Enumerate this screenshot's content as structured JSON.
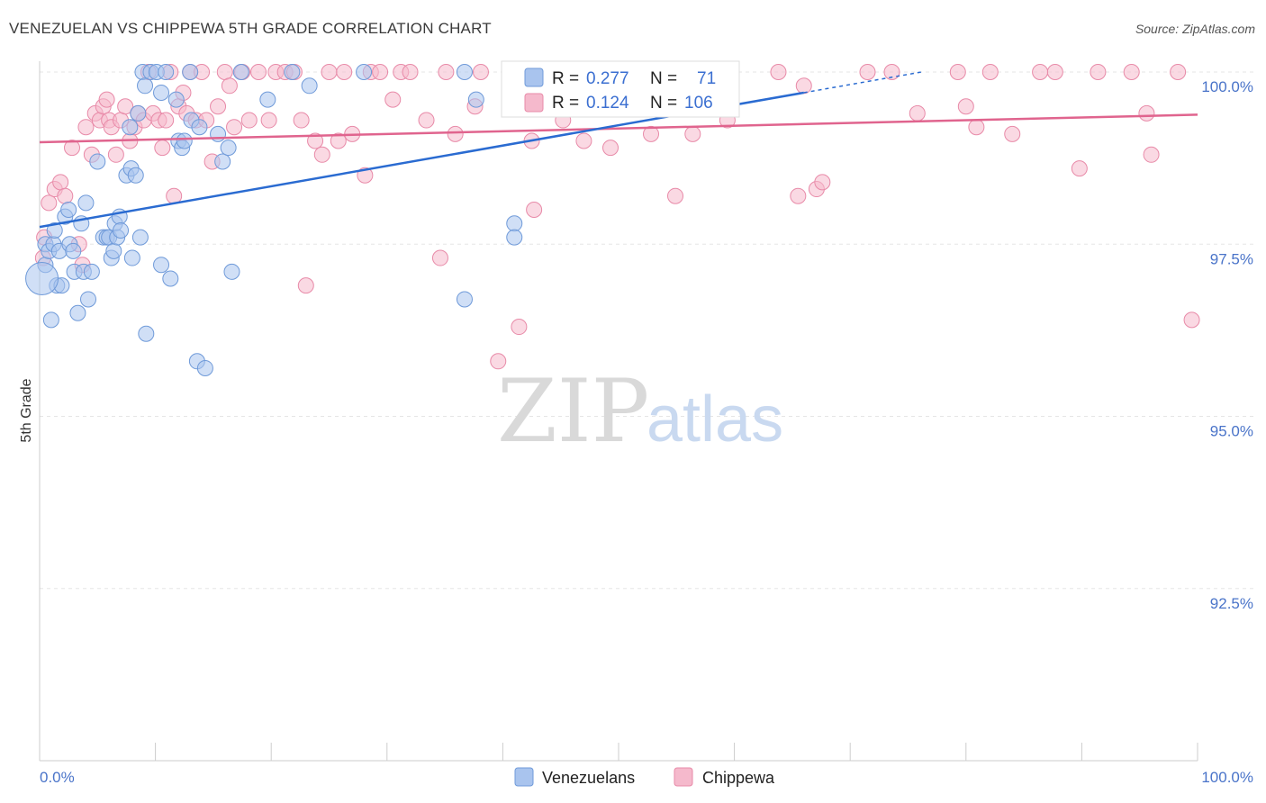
{
  "header": {
    "title": "VENEZUELAN VS CHIPPEWA 5TH GRADE CORRELATION CHART",
    "source": "Source: ZipAtlas.com"
  },
  "watermark": {
    "zip": "ZIP",
    "atlas": "atlas"
  },
  "legend_box": {
    "r_label": "R =",
    "n_label": "N =",
    "rows": [
      {
        "r": "0.277",
        "n": "71"
      },
      {
        "r": "0.124",
        "n": "106"
      }
    ]
  },
  "bottom_legend": [
    "Venezuelans",
    "Chippewa"
  ],
  "colors": {
    "venezuelans_fill": "#a9c4ee",
    "venezuelans_stroke": "#6f9ad9",
    "venezuelans_line": "#2a6bd1",
    "chippewa_fill": "#f5b9cc",
    "chippewa_stroke": "#e88aa8",
    "chippewa_line": "#e0648e",
    "tick_text": "#4a74c9"
  },
  "chart_data": {
    "type": "scatter",
    "title": "VENEZUELAN VS CHIPPEWA 5TH GRADE CORRELATION CHART",
    "xlabel": "",
    "ylabel": "5th Grade",
    "xlim": [
      0,
      100
    ],
    "ylim": [
      90.0,
      100.0
    ],
    "x_tick_labels": [
      "0.0%",
      "100.0%"
    ],
    "y_ticks": [
      92.5,
      95.0,
      97.5,
      100.0
    ],
    "y_tick_labels": [
      "92.5%",
      "95.0%",
      "97.5%",
      "100.0%"
    ],
    "grid": true,
    "legend_position": "top-center",
    "series": [
      {
        "name": "Venezuelans",
        "r": 0.277,
        "n": 71,
        "trend": {
          "x": [
            0,
            66
          ],
          "y": [
            97.75,
            99.7
          ]
        },
        "trend_dashed": {
          "x": [
            66,
            66
          ],
          "y": [
            99.7,
            99.7
          ]
        },
        "points": [
          [
            0.5,
            97.5
          ],
          [
            0.5,
            97.2
          ],
          [
            0.8,
            97.4
          ],
          [
            1.0,
            96.4
          ],
          [
            1.2,
            97.5
          ],
          [
            1.3,
            97.7
          ],
          [
            1.5,
            96.9
          ],
          [
            1.7,
            97.4
          ],
          [
            1.9,
            96.9
          ],
          [
            2.2,
            97.9
          ],
          [
            2.5,
            98.0
          ],
          [
            2.6,
            97.5
          ],
          [
            2.9,
            97.4
          ],
          [
            3.0,
            97.1
          ],
          [
            3.3,
            96.5
          ],
          [
            3.6,
            97.8
          ],
          [
            3.8,
            97.1
          ],
          [
            4.0,
            98.1
          ],
          [
            4.2,
            96.7
          ],
          [
            4.5,
            97.1
          ],
          [
            5.0,
            98.7
          ],
          [
            5.5,
            97.6
          ],
          [
            5.8,
            97.6
          ],
          [
            6.0,
            97.6
          ],
          [
            6.2,
            97.3
          ],
          [
            6.4,
            97.4
          ],
          [
            6.5,
            97.8
          ],
          [
            6.7,
            97.6
          ],
          [
            6.9,
            97.9
          ],
          [
            7.0,
            97.7
          ],
          [
            7.5,
            98.5
          ],
          [
            7.8,
            99.2
          ],
          [
            7.9,
            98.6
          ],
          [
            8.0,
            97.3
          ],
          [
            8.3,
            98.5
          ],
          [
            8.5,
            99.4
          ],
          [
            8.7,
            97.6
          ],
          [
            8.9,
            100.0
          ],
          [
            9.1,
            99.8
          ],
          [
            9.2,
            96.2
          ],
          [
            9.6,
            100.0
          ],
          [
            10.1,
            100.0
          ],
          [
            10.5,
            99.7
          ],
          [
            10.5,
            97.2
          ],
          [
            10.9,
            100.0
          ],
          [
            11.3,
            97.0
          ],
          [
            11.8,
            99.6
          ],
          [
            12.0,
            99.0
          ],
          [
            12.3,
            98.9
          ],
          [
            12.5,
            99.0
          ],
          [
            13.0,
            100.0
          ],
          [
            13.1,
            99.3
          ],
          [
            13.6,
            95.8
          ],
          [
            13.8,
            99.2
          ],
          [
            14.3,
            95.7
          ],
          [
            15.4,
            99.1
          ],
          [
            15.8,
            98.7
          ],
          [
            16.3,
            98.9
          ],
          [
            16.6,
            97.1
          ],
          [
            17.4,
            100.0
          ],
          [
            19.7,
            99.6
          ],
          [
            21.8,
            100.0
          ],
          [
            23.3,
            99.8
          ],
          [
            28.0,
            100.0
          ],
          [
            36.7,
            100.0
          ],
          [
            36.7,
            96.7
          ],
          [
            37.7,
            99.6
          ],
          [
            41.0,
            97.8
          ],
          [
            41.0,
            97.6
          ],
          [
            45.0,
            100.0
          ],
          [
            0.2,
            97.0
          ]
        ]
      },
      {
        "name": "Chippewa",
        "r": 0.124,
        "n": 106,
        "trend": {
          "x": [
            0,
            100
          ],
          "y": [
            98.98,
            99.38
          ]
        },
        "points": [
          [
            0.3,
            97.3
          ],
          [
            0.4,
            97.6
          ],
          [
            0.8,
            98.1
          ],
          [
            1.3,
            98.3
          ],
          [
            1.8,
            98.4
          ],
          [
            2.2,
            98.2
          ],
          [
            2.8,
            98.9
          ],
          [
            3.4,
            97.5
          ],
          [
            3.7,
            97.2
          ],
          [
            4.0,
            99.2
          ],
          [
            4.5,
            98.8
          ],
          [
            4.8,
            99.4
          ],
          [
            5.2,
            99.3
          ],
          [
            5.5,
            99.5
          ],
          [
            5.8,
            99.6
          ],
          [
            6.0,
            99.3
          ],
          [
            6.2,
            99.2
          ],
          [
            6.6,
            98.8
          ],
          [
            7.0,
            99.3
          ],
          [
            7.4,
            99.5
          ],
          [
            7.8,
            99.0
          ],
          [
            8.2,
            99.2
          ],
          [
            8.5,
            99.4
          ],
          [
            9.0,
            99.3
          ],
          [
            9.4,
            100.0
          ],
          [
            9.8,
            99.4
          ],
          [
            10.3,
            99.3
          ],
          [
            10.6,
            98.9
          ],
          [
            10.9,
            99.3
          ],
          [
            11.3,
            100.0
          ],
          [
            11.6,
            98.2
          ],
          [
            12.0,
            99.5
          ],
          [
            12.4,
            99.7
          ],
          [
            12.7,
            99.4
          ],
          [
            13.0,
            100.0
          ],
          [
            13.5,
            99.3
          ],
          [
            14.0,
            100.0
          ],
          [
            14.4,
            99.3
          ],
          [
            14.9,
            98.7
          ],
          [
            15.4,
            99.5
          ],
          [
            16.0,
            100.0
          ],
          [
            16.4,
            99.8
          ],
          [
            16.8,
            99.2
          ],
          [
            17.5,
            100.0
          ],
          [
            18.1,
            99.3
          ],
          [
            18.9,
            100.0
          ],
          [
            19.8,
            99.3
          ],
          [
            20.4,
            100.0
          ],
          [
            21.2,
            100.0
          ],
          [
            22.0,
            100.0
          ],
          [
            22.6,
            99.3
          ],
          [
            23.0,
            96.9
          ],
          [
            23.8,
            99.0
          ],
          [
            24.4,
            98.8
          ],
          [
            25.0,
            100.0
          ],
          [
            25.8,
            99.0
          ],
          [
            26.3,
            100.0
          ],
          [
            27.0,
            99.1
          ],
          [
            28.1,
            98.5
          ],
          [
            28.6,
            100.0
          ],
          [
            29.4,
            100.0
          ],
          [
            30.5,
            99.6
          ],
          [
            31.2,
            100.0
          ],
          [
            32.0,
            100.0
          ],
          [
            33.4,
            99.3
          ],
          [
            34.6,
            97.3
          ],
          [
            35.1,
            100.0
          ],
          [
            35.9,
            99.1
          ],
          [
            37.6,
            99.5
          ],
          [
            38.1,
            100.0
          ],
          [
            39.6,
            95.8
          ],
          [
            41.4,
            96.3
          ],
          [
            42.5,
            99.0
          ],
          [
            42.7,
            98.0
          ],
          [
            44.5,
            99.6
          ],
          [
            45.2,
            99.3
          ],
          [
            46.1,
            100.0
          ],
          [
            47.0,
            99.0
          ],
          [
            49.3,
            98.9
          ],
          [
            51.4,
            100.0
          ],
          [
            52.8,
            99.1
          ],
          [
            54.9,
            98.2
          ],
          [
            56.4,
            99.1
          ],
          [
            59.4,
            99.3
          ],
          [
            63.8,
            100.0
          ],
          [
            66.0,
            99.8
          ],
          [
            65.5,
            98.2
          ],
          [
            67.1,
            98.3
          ],
          [
            67.6,
            98.4
          ],
          [
            71.5,
            100.0
          ],
          [
            73.6,
            100.0
          ],
          [
            75.8,
            99.4
          ],
          [
            79.3,
            100.0
          ],
          [
            80.0,
            99.5
          ],
          [
            80.9,
            99.2
          ],
          [
            82.1,
            100.0
          ],
          [
            84.0,
            99.1
          ],
          [
            86.4,
            100.0
          ],
          [
            87.7,
            100.0
          ],
          [
            89.8,
            98.6
          ],
          [
            91.4,
            100.0
          ],
          [
            94.3,
            100.0
          ],
          [
            95.6,
            99.4
          ],
          [
            96.0,
            98.8
          ],
          [
            98.3,
            100.0
          ],
          [
            99.5,
            96.4
          ]
        ]
      }
    ]
  }
}
